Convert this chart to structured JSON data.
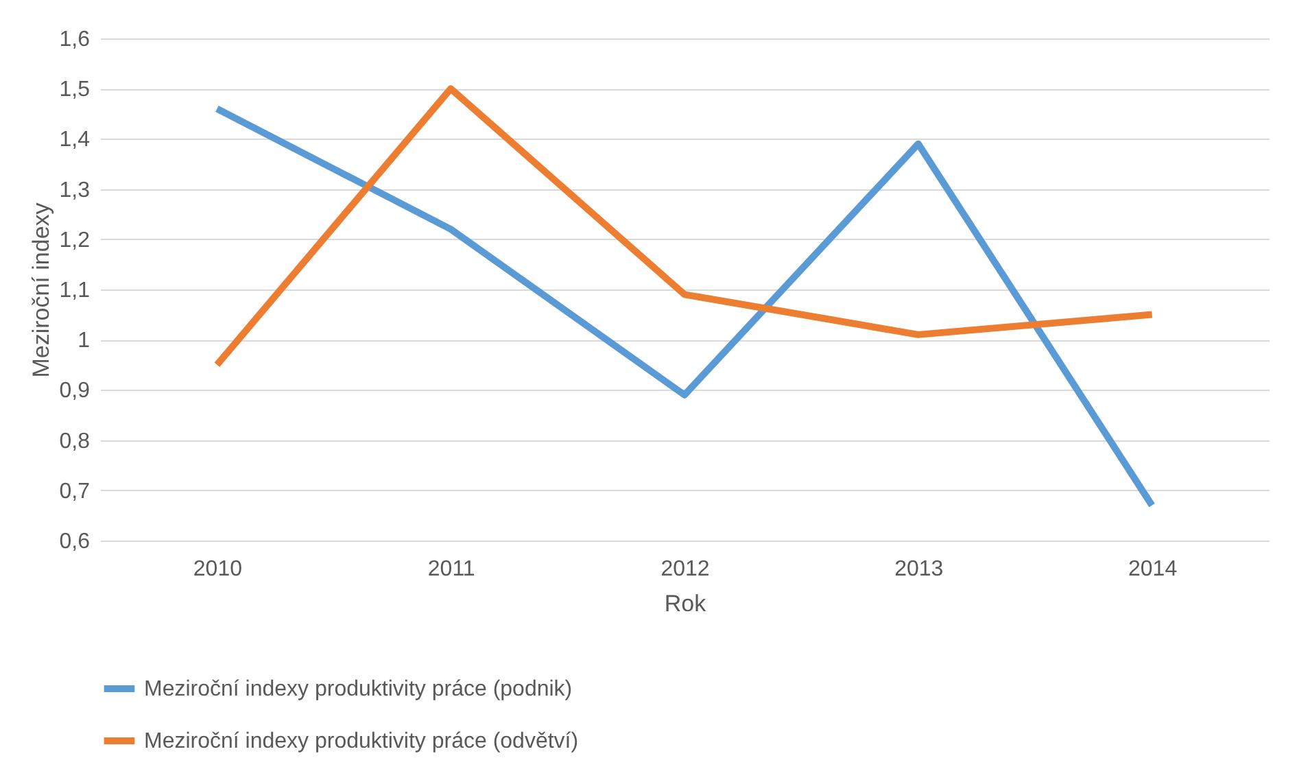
{
  "chart_data": {
    "type": "line",
    "xlabel": "Rok",
    "ylabel": "Meziroční indexy",
    "categories": [
      "2010",
      "2011",
      "2012",
      "2013",
      "2014"
    ],
    "series": [
      {
        "name": "Meziroční indexy produktivity práce (podnik)",
        "color": "#5b9bd5",
        "values": [
          1.46,
          1.22,
          0.89,
          1.39,
          0.67
        ]
      },
      {
        "name": "Meziroční indexy produktivity práce (odvětví)",
        "color": "#ed7d31",
        "values": [
          0.95,
          1.5,
          1.09,
          1.01,
          1.05
        ]
      }
    ],
    "ylim": [
      0.6,
      1.6
    ],
    "yticks": [
      {
        "value": 0.6,
        "label": "0,6"
      },
      {
        "value": 0.7,
        "label": "0,7"
      },
      {
        "value": 0.8,
        "label": "0,8"
      },
      {
        "value": 0.9,
        "label": "0,9"
      },
      {
        "value": 1,
        "label": "1"
      },
      {
        "value": 1.1,
        "label": "1,1"
      },
      {
        "value": 1.2,
        "label": "1,2"
      },
      {
        "value": 1.3,
        "label": "1,3"
      },
      {
        "value": 1.4,
        "label": "1,4"
      },
      {
        "value": 1.5,
        "label": "1,5"
      },
      {
        "value": 1.6,
        "label": "1,6"
      }
    ],
    "grid": "y",
    "legend": "bottom"
  }
}
